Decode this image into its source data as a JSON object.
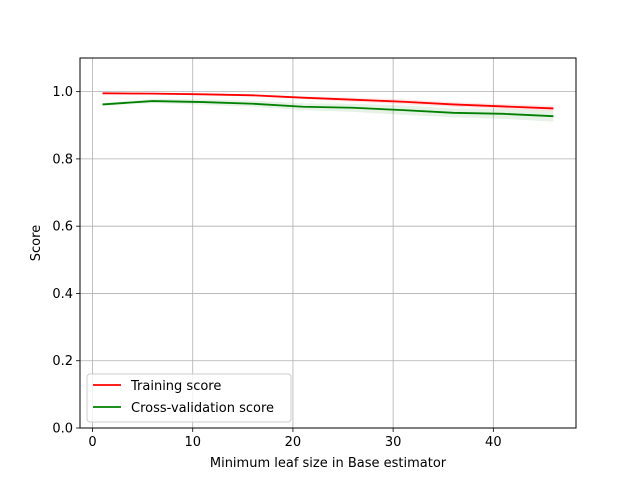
{
  "chart_data": {
    "type": "line",
    "title": "",
    "xlabel": "Minimum leaf size in Base estimator",
    "ylabel": "Score",
    "xlim": [
      -1.25,
      48.25
    ],
    "ylim": [
      0.0,
      1.1
    ],
    "xticks": [
      0,
      10,
      20,
      30,
      40
    ],
    "yticks": [
      0.0,
      0.2,
      0.4,
      0.6,
      0.8,
      1.0
    ],
    "xtick_labels": [
      "0",
      "10",
      "20",
      "30",
      "40"
    ],
    "ytick_labels": [
      "0.0",
      "0.2",
      "0.4",
      "0.6",
      "0.8",
      "1.0"
    ],
    "grid": true,
    "legend_position": "lower-left",
    "x": [
      1,
      6,
      11,
      16,
      21,
      26,
      31,
      36,
      41,
      46
    ],
    "series": [
      {
        "name": "Training score",
        "color": "#ff0000",
        "band_color": "#ff0000",
        "values": [
          0.995,
          0.994,
          0.992,
          0.989,
          0.982,
          0.976,
          0.97,
          0.962,
          0.956,
          0.95
        ],
        "std": [
          0.001,
          0.001,
          0.002,
          0.003,
          0.004,
          0.006,
          0.007,
          0.007,
          0.007,
          0.008
        ]
      },
      {
        "name": "Cross-validation score",
        "color": "#008000",
        "band_color": "#008000",
        "values": [
          0.962,
          0.972,
          0.969,
          0.964,
          0.955,
          0.952,
          0.945,
          0.937,
          0.934,
          0.927
        ],
        "std": [
          0.004,
          0.006,
          0.008,
          0.009,
          0.01,
          0.012,
          0.014,
          0.013,
          0.015,
          0.016
        ]
      }
    ]
  }
}
